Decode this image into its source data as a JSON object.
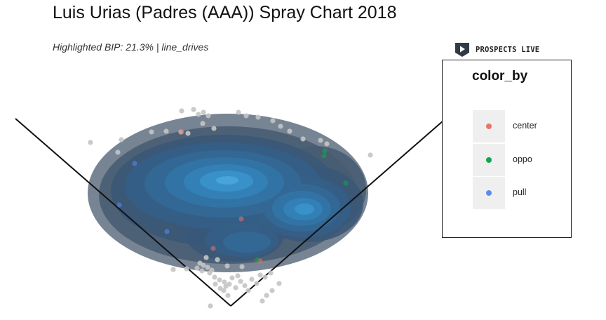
{
  "header": {
    "title": "Luis Urias (Padres (AAA)) Spray Chart 2018",
    "subtitle": "Highlighted BIP: 21.3% | line_drives"
  },
  "brand": {
    "name": "PROSPECTS LIVE",
    "icon": "play-shield-icon"
  },
  "legend": {
    "title": "color_by",
    "items": [
      {
        "label": "center",
        "color": "#e8736b"
      },
      {
        "label": "oppo",
        "color": "#13a54a"
      },
      {
        "label": "pull",
        "color": "#5b8def"
      }
    ]
  },
  "chart_data": {
    "type": "scatter",
    "title": "Luis Urias (Padres (AAA)) Spray Chart 2018",
    "subtitle": "Highlighted BIP: 21.3% | line_drives",
    "xlabel": "",
    "ylabel": "",
    "axes_visible": false,
    "grid": false,
    "legend_position": "right",
    "legend_title": "color_by",
    "density_overlay": {
      "type": "kde-filled-contours",
      "levels": 9,
      "colors": [
        "#5f6f80",
        "#485d73",
        "#3a5878",
        "#345f87",
        "#336896",
        "#3274a6",
        "#3382b8",
        "#3a92cb",
        "#4ba6de"
      ]
    },
    "series": [
      {
        "name": "background",
        "color": "#c4c4c4",
        "points": [
          [
            259,
            158
          ],
          [
            276,
            156
          ],
          [
            290,
            160
          ],
          [
            297,
            165
          ],
          [
            283,
            163
          ],
          [
            340,
            160
          ],
          [
            351,
            165
          ],
          [
            368,
            167
          ],
          [
            389,
            172
          ],
          [
            400,
            180
          ],
          [
            413,
            187
          ],
          [
            432,
            198
          ],
          [
            129,
            203
          ],
          [
            173,
            199
          ],
          [
            216,
            188
          ],
          [
            237,
            187
          ],
          [
            258,
            188
          ],
          [
            268,
            190
          ],
          [
            289,
            176
          ],
          [
            305,
            183
          ],
          [
            168,
            217
          ],
          [
            457,
            200
          ],
          [
            466,
            205
          ],
          [
            528,
            221
          ],
          [
            247,
            384
          ],
          [
            266,
            383
          ],
          [
            285,
            375
          ],
          [
            290,
            378
          ],
          [
            296,
            381
          ],
          [
            302,
            385
          ],
          [
            281,
            382
          ],
          [
            288,
            386
          ],
          [
            299,
            389
          ],
          [
            306,
            395
          ],
          [
            313,
            399
          ],
          [
            320,
            402
          ],
          [
            327,
            405
          ],
          [
            331,
            396
          ],
          [
            336,
            410
          ],
          [
            343,
            401
          ],
          [
            349,
            407
          ],
          [
            354,
            414
          ],
          [
            359,
            398
          ],
          [
            366,
            404
          ],
          [
            371,
            392
          ],
          [
            319,
            414
          ],
          [
            325,
            421
          ],
          [
            300,
            436
          ],
          [
            374,
            429
          ],
          [
            380,
            421
          ],
          [
            388,
            414
          ],
          [
            398,
            404
          ],
          [
            386,
            389
          ],
          [
            378,
            395
          ],
          [
            307,
            405
          ],
          [
            314,
            411
          ],
          [
            294,
            367
          ],
          [
            310,
            370
          ],
          [
            324,
            379
          ],
          [
            345,
            380
          ],
          [
            339,
            393
          ],
          [
            322,
            408
          ]
        ]
      },
      {
        "name": "center",
        "color": "#e8736b",
        "points": [
          [
            259,
            188
          ],
          [
            344,
            312
          ],
          [
            304,
            354
          ],
          [
            371,
            372
          ]
        ]
      },
      {
        "name": "oppo",
        "color": "#13a54a",
        "points": [
          [
            463,
            215
          ],
          [
            462,
            222
          ],
          [
            493,
            261
          ],
          [
            367,
            370
          ]
        ]
      },
      {
        "name": "pull",
        "color": "#5b8def",
        "points": [
          [
            192,
            233
          ],
          [
            238,
            330
          ],
          [
            170,
            292
          ]
        ]
      }
    ]
  }
}
